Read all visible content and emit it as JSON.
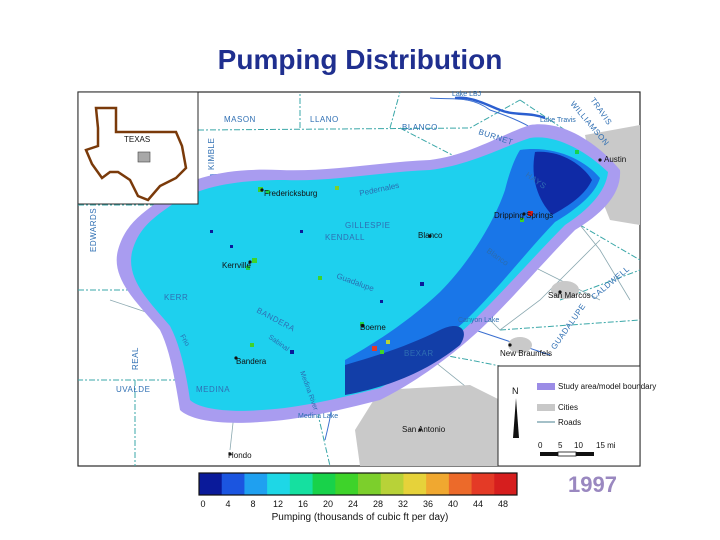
{
  "title": "Pumping Distribution",
  "year": "1997",
  "inset": {
    "state_label": "TEXAS"
  },
  "counties": [
    "MASON",
    "LLANO",
    "BLANCO",
    "BURNET",
    "KIMBLE",
    "GILLESPIE",
    "KENDALL",
    "EDWARDS",
    "KERR",
    "BANDERA",
    "REAL",
    "UVALDE",
    "MEDINA",
    "BEXAR",
    "HAYS",
    "TRAVIS",
    "CALDWELL",
    "GUADALUPE",
    "WILLIAMSON"
  ],
  "towns": [
    "Fredericksburg",
    "Dripping Springs",
    "Blanco",
    "Kerrville",
    "Boerne",
    "Bandera",
    "Austin",
    "San Marcos",
    "New Braunfels",
    "San Antonio",
    "Hondo"
  ],
  "water": [
    "Lake LBJ",
    "Lake Travis",
    "Pedernales",
    "Guadalupe",
    "Blanco",
    "Canyon Lake",
    "Medina Lake",
    "Medina River",
    "Sabinal",
    "Frio"
  ],
  "legend": {
    "north": "N",
    "items": [
      {
        "label": "Study area/model boundary",
        "color": "#9b8ce6"
      },
      {
        "label": "Cities",
        "color": "#c8c8c8"
      },
      {
        "label": "Roads",
        "color": "#6e9aa8"
      }
    ],
    "scale_ticks": [
      "0",
      "5",
      "10",
      "15 mi"
    ]
  },
  "colorbar": {
    "ticks": [
      "0",
      "4",
      "8",
      "12",
      "16",
      "20",
      "24",
      "28",
      "32",
      "36",
      "40",
      "44",
      "48"
    ],
    "caption": "Pumping (thousands of cubic ft per day)",
    "colors": [
      "#0a1a9a",
      "#1b55e0",
      "#1fa0f0",
      "#1ed7e6",
      "#15e0a0",
      "#18d24a",
      "#3ed32a",
      "#7ccf2c",
      "#b8d238",
      "#e6d23a",
      "#f0a830",
      "#ec6a2a",
      "#e43a26",
      "#d61e1e"
    ]
  }
}
